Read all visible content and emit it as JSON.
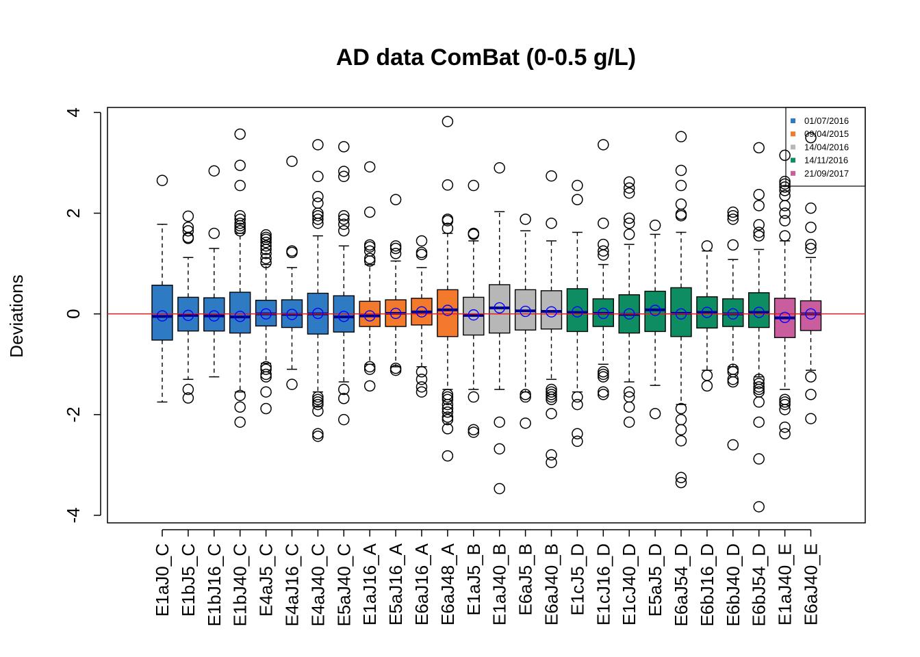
{
  "chart_data": {
    "type": "box",
    "title": "AD data ComBat (0-0.5 g/L)",
    "ylabel": "Deviations",
    "xlabel": "",
    "ylim": [
      -4.15,
      4.1
    ],
    "yticks": [
      -4,
      -2,
      0,
      2,
      4
    ],
    "yticks_labels": [
      "-4",
      "-2",
      "0",
      "2",
      "4"
    ],
    "reference_line": {
      "y": 0,
      "color": "#e41a1c"
    },
    "mean_marker_color": "#0000ff",
    "median_color": "#00008b",
    "legend": {
      "position": "top-right",
      "entries": [
        {
          "label": "01/07/2016",
          "color": "#2e7bc4"
        },
        {
          "label": "09/04/2015",
          "color": "#f37a2c"
        },
        {
          "label": "14/04/2016",
          "color": "#b7b7b7"
        },
        {
          "label": "14/11/2016",
          "color": "#0f8d62"
        },
        {
          "label": "21/09/2017",
          "color": "#c95d9e"
        }
      ]
    },
    "boxes": [
      {
        "name": "E1aJ0_C",
        "group": 0,
        "q1": -0.52,
        "median": -0.05,
        "q3": 0.57,
        "low": -1.75,
        "high": 1.78,
        "mean": -0.04,
        "outliers": [
          2.65
        ]
      },
      {
        "name": "E1bJ5_C",
        "group": 0,
        "q1": -0.34,
        "median": -0.03,
        "q3": 0.33,
        "low": -1.3,
        "high": 1.12,
        "mean": -0.03,
        "outliers": [
          1.94,
          1.72,
          1.65,
          1.52,
          1.5,
          -1.5,
          -1.67
        ]
      },
      {
        "name": "E1bJ16_C",
        "group": 0,
        "q1": -0.34,
        "median": -0.04,
        "q3": 0.32,
        "low": -1.25,
        "high": 1.3,
        "mean": -0.04,
        "outliers": [
          2.84,
          1.6
        ]
      },
      {
        "name": "E1bJ40_C",
        "group": 0,
        "q1": -0.38,
        "median": -0.06,
        "q3": 0.43,
        "low": -1.55,
        "high": 1.6,
        "mean": -0.05,
        "outliers": [
          3.57,
          2.95,
          2.55,
          1.95,
          1.88,
          1.8,
          1.75,
          1.7,
          1.65,
          -1.62,
          -1.85,
          -2.15
        ]
      },
      {
        "name": "E4aJ5_C",
        "group": 0,
        "q1": -0.24,
        "median": 0.0,
        "q3": 0.27,
        "low": -0.98,
        "high": 0.98,
        "mean": 0.0,
        "outliers": [
          1.57,
          1.52,
          1.48,
          1.42,
          1.35,
          1.28,
          1.2,
          1.1,
          1.02,
          -1.05,
          -1.1,
          -1.2,
          -1.25,
          -1.55,
          -1.88
        ]
      },
      {
        "name": "E4aJ16_C",
        "group": 0,
        "q1": -0.27,
        "median": -0.01,
        "q3": 0.28,
        "low": -1.1,
        "high": 0.92,
        "mean": -0.01,
        "outliers": [
          3.03,
          1.25,
          1.22,
          -1.4
        ]
      },
      {
        "name": "E4aJ40_C",
        "group": 0,
        "q1": -0.4,
        "median": 0.0,
        "q3": 0.41,
        "low": -1.55,
        "high": 1.55,
        "mean": 0.01,
        "outliers": [
          3.36,
          2.73,
          2.33,
          2.2,
          2.0,
          1.95,
          1.88,
          1.8,
          -1.65,
          -1.7,
          -1.75,
          -1.8,
          -1.93,
          -2.38,
          -2.43
        ]
      },
      {
        "name": "E5aJ40_C",
        "group": 0,
        "q1": -0.36,
        "median": -0.06,
        "q3": 0.36,
        "low": -1.35,
        "high": 1.35,
        "mean": -0.05,
        "outliers": [
          3.32,
          2.83,
          2.73,
          1.95,
          1.88,
          1.78,
          1.65,
          -1.5,
          -1.68,
          -2.1
        ]
      },
      {
        "name": "E1aJ16_A",
        "group": 1,
        "q1": -0.25,
        "median": -0.04,
        "q3": 0.25,
        "low": -1.0,
        "high": 0.98,
        "mean": -0.04,
        "outliers": [
          2.92,
          2.02,
          1.37,
          1.33,
          1.25,
          1.1,
          1.05,
          -1.05,
          -1.1,
          -1.43
        ]
      },
      {
        "name": "E5aJ16_A",
        "group": 1,
        "q1": -0.25,
        "median": 0.01,
        "q3": 0.28,
        "low": -1.05,
        "high": 1.05,
        "mean": 0.01,
        "outliers": [
          2.27,
          1.35,
          1.3,
          1.2,
          -1.08,
          -1.12
        ]
      },
      {
        "name": "E6aJ16_A",
        "group": 1,
        "q1": -0.22,
        "median": 0.04,
        "q3": 0.31,
        "low": -1.05,
        "high": 0.92,
        "mean": 0.04,
        "outliers": [
          1.45,
          1.22,
          1.18,
          -1.15,
          -1.3,
          -1.45,
          -1.55
        ]
      },
      {
        "name": "E6aJ48_A",
        "group": 1,
        "q1": -0.45,
        "median": 0.08,
        "q3": 0.48,
        "low": -1.5,
        "high": 1.6,
        "mean": 0.07,
        "outliers": [
          3.82,
          2.56,
          1.88,
          1.85,
          1.7,
          -1.6,
          -1.65,
          -1.7,
          -1.8,
          -1.88,
          -1.95,
          -2.05,
          -2.1,
          -2.28,
          -2.82
        ]
      },
      {
        "name": "E1aJ5_B",
        "group": 2,
        "q1": -0.42,
        "median": -0.03,
        "q3": 0.33,
        "low": -1.5,
        "high": 1.45,
        "mean": -0.02,
        "outliers": [
          2.55,
          1.6,
          1.58,
          -1.65,
          -2.3,
          -2.35
        ]
      },
      {
        "name": "E1aJ40_B",
        "group": 2,
        "q1": -0.38,
        "median": 0.12,
        "q3": 0.58,
        "low": -1.5,
        "high": 2.03,
        "mean": 0.12,
        "outliers": [
          2.9,
          -2.15,
          -2.68,
          -3.47
        ]
      },
      {
        "name": "E6aJ5_B",
        "group": 2,
        "q1": -0.32,
        "median": 0.06,
        "q3": 0.48,
        "low": -1.55,
        "high": 1.65,
        "mean": 0.05,
        "outliers": [
          1.88,
          -1.6,
          -1.65,
          -2.17
        ]
      },
      {
        "name": "E6aJ40_B",
        "group": 2,
        "q1": -0.3,
        "median": 0.05,
        "q3": 0.46,
        "low": -1.3,
        "high": 1.45,
        "mean": 0.04,
        "outliers": [
          2.74,
          1.8,
          -1.5,
          -1.55,
          -1.6,
          -1.65,
          -1.7,
          -1.98,
          -2.8,
          -2.95
        ]
      },
      {
        "name": "E1cJ5_D",
        "group": 3,
        "q1": -0.35,
        "median": 0.03,
        "q3": 0.5,
        "low": -1.55,
        "high": 1.62,
        "mean": 0.04,
        "outliers": [
          2.55,
          2.27,
          -1.65,
          -1.8,
          -2.38,
          -2.53
        ]
      },
      {
        "name": "E1cJ16_D",
        "group": 3,
        "q1": -0.25,
        "median": 0.01,
        "q3": 0.3,
        "low": -1.0,
        "high": 0.98,
        "mean": 0.01,
        "outliers": [
          3.36,
          1.8,
          1.38,
          1.25,
          1.17,
          -1.15,
          -1.2,
          -1.25,
          -1.55,
          -1.6
        ]
      },
      {
        "name": "E1cJ40_D",
        "group": 3,
        "q1": -0.38,
        "median": -0.01,
        "q3": 0.38,
        "low": -1.35,
        "high": 1.38,
        "mean": 0.0,
        "outliers": [
          2.62,
          2.5,
          2.4,
          1.9,
          1.8,
          1.58,
          -1.55,
          -1.65,
          -1.85,
          -2.15
        ]
      },
      {
        "name": "E5aJ5_D",
        "group": 3,
        "q1": -0.35,
        "median": 0.08,
        "q3": 0.45,
        "low": -1.42,
        "high": 1.58,
        "mean": 0.07,
        "outliers": [
          1.76,
          -1.98
        ]
      },
      {
        "name": "E6aJ54_D",
        "group": 3,
        "q1": -0.45,
        "median": 0.01,
        "q3": 0.52,
        "low": -1.8,
        "high": 1.62,
        "mean": 0.0,
        "outliers": [
          3.52,
          2.85,
          2.55,
          2.18,
          1.98,
          1.95,
          -1.88,
          -2.1,
          -2.3,
          -2.52,
          -3.25,
          -3.35
        ]
      },
      {
        "name": "E6bJ16_D",
        "group": 3,
        "q1": -0.28,
        "median": 0.03,
        "q3": 0.34,
        "low": -1.12,
        "high": 1.25,
        "mean": 0.03,
        "outliers": [
          1.35,
          -1.22,
          -1.43
        ]
      },
      {
        "name": "E6bJ40_D",
        "group": 3,
        "q1": -0.25,
        "median": 0.0,
        "q3": 0.3,
        "low": -1.05,
        "high": 1.08,
        "mean": 0.0,
        "outliers": [
          2.02,
          1.95,
          1.88,
          1.37,
          -1.1,
          -1.15,
          -1.3,
          -1.35,
          -2.6
        ]
      },
      {
        "name": "E6bJ54_D",
        "group": 3,
        "q1": -0.27,
        "median": 0.03,
        "q3": 0.42,
        "low": -1.25,
        "high": 1.28,
        "mean": 0.03,
        "outliers": [
          3.3,
          2.37,
          2.15,
          1.77,
          1.62,
          1.55,
          -1.3,
          -1.38,
          -1.45,
          -1.5,
          -1.55,
          -1.75,
          -2.15,
          -2.88,
          -3.83
        ]
      },
      {
        "name": "E1aJ40_E",
        "group": 4,
        "q1": -0.47,
        "median": -0.08,
        "q3": 0.31,
        "low": -1.5,
        "high": 1.45,
        "mean": -0.07,
        "outliers": [
          3.15,
          2.63,
          2.58,
          2.52,
          2.45,
          2.35,
          2.15,
          2.0,
          1.85,
          1.55,
          -1.7,
          -1.75,
          -1.8,
          -1.9,
          -2.25,
          -2.38
        ]
      },
      {
        "name": "E6aJ40_E",
        "group": 4,
        "q1": -0.33,
        "median": 0.0,
        "q3": 0.26,
        "low": -1.12,
        "high": 1.12,
        "mean": 0.0,
        "outliers": [
          3.5,
          2.1,
          1.72,
          1.38,
          1.3,
          -1.25,
          -1.6,
          -2.08
        ]
      }
    ]
  }
}
